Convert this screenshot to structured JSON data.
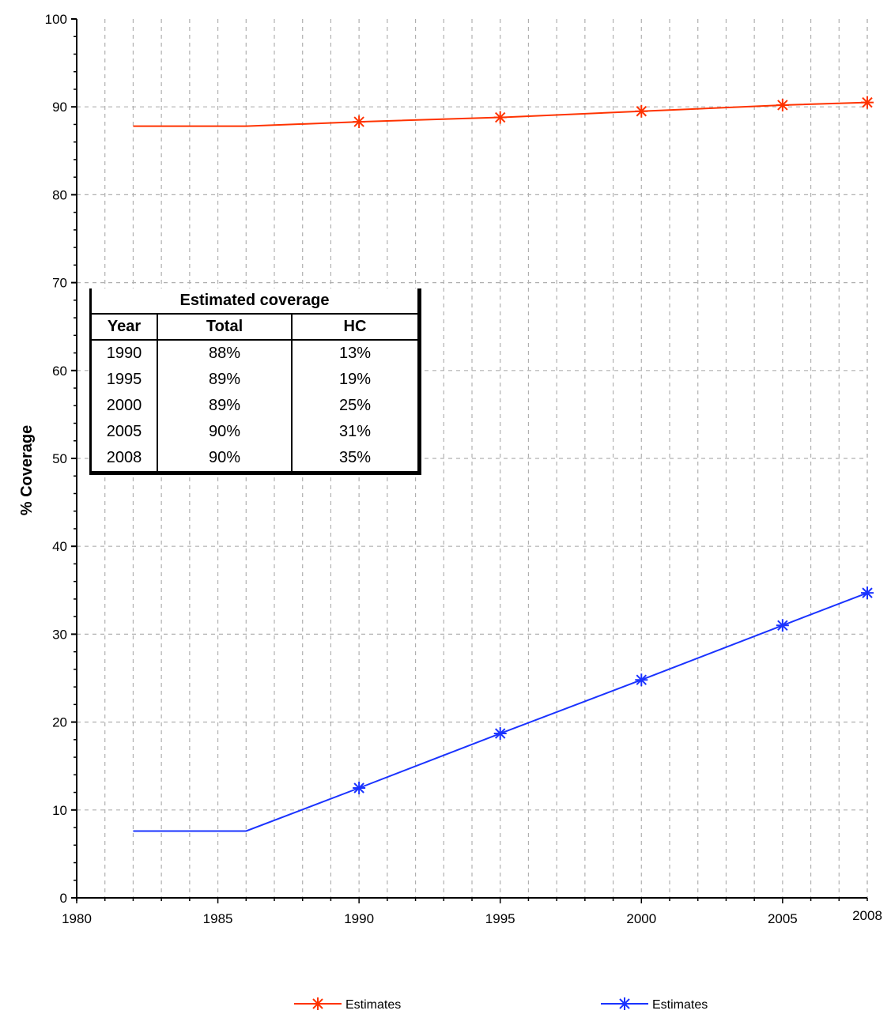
{
  "chart_data": {
    "type": "line",
    "title": "",
    "xlabel": "",
    "ylabel": "% Coverage",
    "xlim": [
      1980,
      2008
    ],
    "ylim": [
      0,
      100
    ],
    "x_ticks": [
      "1980",
      "1985",
      "1990",
      "1995",
      "2000",
      "2005",
      "2008"
    ],
    "y_ticks": [
      "0",
      "10",
      "20",
      "30",
      "40",
      "50",
      "60",
      "70",
      "80",
      "90",
      "100"
    ],
    "grid": true,
    "legend_position": "bottom",
    "series": [
      {
        "name": "Estimates",
        "color": "#ff3300",
        "marker": "asterisk",
        "points": [
          [
            1982,
            87.8
          ],
          [
            1986,
            87.8
          ],
          [
            1990,
            88.3
          ],
          [
            1995,
            88.8
          ],
          [
            2000,
            89.5
          ],
          [
            2005,
            90.2
          ],
          [
            2008,
            90.5
          ]
        ],
        "marked_x": [
          1990,
          1995,
          2000,
          2005,
          2008
        ]
      },
      {
        "name": "Estimates",
        "color": "#1a33ff",
        "marker": "asterisk",
        "points": [
          [
            1982,
            7.6
          ],
          [
            1986,
            7.6
          ],
          [
            1990,
            12.5
          ],
          [
            1995,
            18.7
          ],
          [
            2000,
            24.8
          ],
          [
            2005,
            31.0
          ],
          [
            2008,
            34.7
          ]
        ],
        "marked_x": [
          1990,
          1995,
          2000,
          2005,
          2008
        ]
      }
    ],
    "inset_table": {
      "caption": "Estimated coverage",
      "headers": [
        "Year",
        "Total",
        "HC"
      ],
      "rows": [
        [
          "1990",
          "88%",
          "13%"
        ],
        [
          "1995",
          "89%",
          "19%"
        ],
        [
          "2000",
          "89%",
          "25%"
        ],
        [
          "2005",
          "90%",
          "31%"
        ],
        [
          "2008",
          "90%",
          "35%"
        ]
      ]
    }
  }
}
